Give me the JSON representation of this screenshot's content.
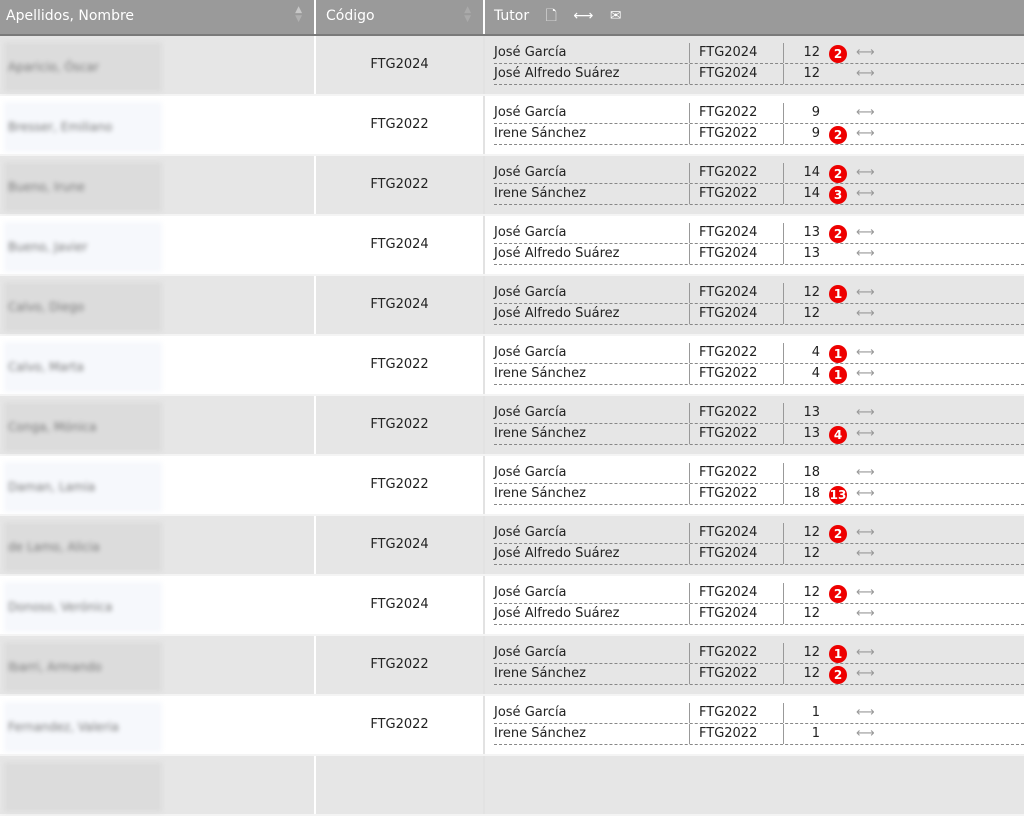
{
  "header": {
    "col_name": "Apellidos, Nombre",
    "col_code": "Código",
    "col_tutor": "Tutor",
    "icons": [
      "document-icon",
      "swap-arrows-icon",
      "envelope-icon"
    ]
  },
  "colors": {
    "header_bg": "#9a9a9a",
    "row_alt": "#e6e6e6",
    "badge": "#e00000"
  },
  "rows": [
    {
      "name": "Aparicio, Óscar",
      "code": "FTG2024",
      "tutors": [
        {
          "name": "José García",
          "code": "FTG2024",
          "count": "12",
          "badge": "2"
        },
        {
          "name": "José Alfredo Suárez",
          "code": "FTG2024",
          "count": "12",
          "badge": ""
        }
      ]
    },
    {
      "name": "Bresser, Emiliano",
      "code": "FTG2022",
      "tutors": [
        {
          "name": "José García",
          "code": "FTG2022",
          "count": "9",
          "badge": ""
        },
        {
          "name": "Irene Sánchez",
          "code": "FTG2022",
          "count": "9",
          "badge": "2"
        }
      ]
    },
    {
      "name": "Bueno, Irune",
      "code": "FTG2022",
      "tutors": [
        {
          "name": "José García",
          "code": "FTG2022",
          "count": "14",
          "badge": "2"
        },
        {
          "name": "Irene Sánchez",
          "code": "FTG2022",
          "count": "14",
          "badge": "3"
        }
      ]
    },
    {
      "name": "Bueno, Javier",
      "code": "FTG2024",
      "tutors": [
        {
          "name": "José García",
          "code": "FTG2024",
          "count": "13",
          "badge": "2"
        },
        {
          "name": "José Alfredo Suárez",
          "code": "FTG2024",
          "count": "13",
          "badge": ""
        }
      ]
    },
    {
      "name": "Calvo, Diego",
      "code": "FTG2024",
      "tutors": [
        {
          "name": "José García",
          "code": "FTG2024",
          "count": "12",
          "badge": "1"
        },
        {
          "name": "José Alfredo Suárez",
          "code": "FTG2024",
          "count": "12",
          "badge": ""
        }
      ]
    },
    {
      "name": "Calvo, Marta",
      "code": "FTG2022",
      "tutors": [
        {
          "name": "José García",
          "code": "FTG2022",
          "count": "4",
          "badge": "1"
        },
        {
          "name": "Irene Sánchez",
          "code": "FTG2022",
          "count": "4",
          "badge": "1"
        }
      ]
    },
    {
      "name": "Conga, Mónica",
      "code": "FTG2022",
      "tutors": [
        {
          "name": "José García",
          "code": "FTG2022",
          "count": "13",
          "badge": ""
        },
        {
          "name": "Irene Sánchez",
          "code": "FTG2022",
          "count": "13",
          "badge": "4"
        }
      ]
    },
    {
      "name": "Daman, Lamia",
      "code": "FTG2022",
      "tutors": [
        {
          "name": "José García",
          "code": "FTG2022",
          "count": "18",
          "badge": ""
        },
        {
          "name": "Irene Sánchez",
          "code": "FTG2022",
          "count": "18",
          "badge": "13"
        }
      ]
    },
    {
      "name": "de Lamo, Alicia",
      "code": "FTG2024",
      "tutors": [
        {
          "name": "José García",
          "code": "FTG2024",
          "count": "12",
          "badge": "2"
        },
        {
          "name": "José Alfredo Suárez",
          "code": "FTG2024",
          "count": "12",
          "badge": ""
        }
      ]
    },
    {
      "name": "Donoso, Verónica",
      "code": "FTG2024",
      "tutors": [
        {
          "name": "José García",
          "code": "FTG2024",
          "count": "12",
          "badge": "2"
        },
        {
          "name": "José Alfredo Suárez",
          "code": "FTG2024",
          "count": "12",
          "badge": ""
        }
      ]
    },
    {
      "name": "Ibarri, Armando",
      "code": "FTG2022",
      "tutors": [
        {
          "name": "José García",
          "code": "FTG2022",
          "count": "12",
          "badge": "1"
        },
        {
          "name": "Irene Sánchez",
          "code": "FTG2022",
          "count": "12",
          "badge": "2"
        }
      ]
    },
    {
      "name": "Fernandez, Valeria",
      "code": "FTG2022",
      "tutors": [
        {
          "name": "José García",
          "code": "FTG2022",
          "count": "1",
          "badge": ""
        },
        {
          "name": "Irene Sánchez",
          "code": "FTG2022",
          "count": "1",
          "badge": ""
        }
      ]
    }
  ]
}
